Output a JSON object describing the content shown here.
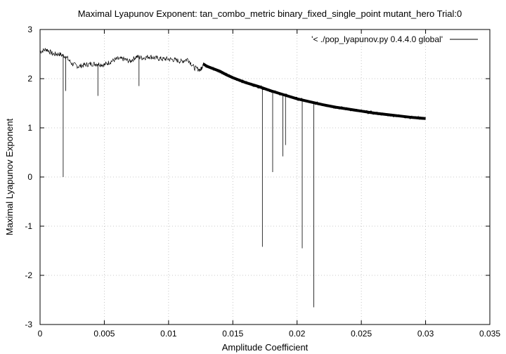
{
  "chart_data": {
    "type": "line",
    "title": "Maximal Lyapunov Exponent: tan_combo_metric binary_fixed_single_point mutant_hero Trial:0",
    "xlabel": "Amplitude Coefficient",
    "ylabel": "Maximal Lyapunov Exponent",
    "xlim": [
      0,
      0.035
    ],
    "ylim": [
      -3,
      3
    ],
    "x_ticks": [
      0,
      0.005,
      0.01,
      0.015,
      0.02,
      0.025,
      0.03,
      0.035
    ],
    "x_tick_labels": [
      "0",
      "0.005",
      "0.01",
      "0.015",
      "0.02",
      "0.025",
      "0.03",
      "0.035"
    ],
    "y_ticks": [
      -3,
      -2,
      -1,
      0,
      1,
      2,
      3
    ],
    "y_tick_labels": [
      "-3",
      "-2",
      "-1",
      "0",
      "1",
      "2",
      "3"
    ],
    "grid": true,
    "legend_position": "top-right",
    "series": [
      {
        "name": "'< ./pop_lyapunov.py 0.4.4.0 global'",
        "color": "#000000",
        "x": [
          0,
          0.0005,
          0.001,
          0.0015,
          0.002,
          0.0025,
          0.003,
          0.0035,
          0.004,
          0.0045,
          0.005,
          0.0055,
          0.006,
          0.0065,
          0.007,
          0.0075,
          0.008,
          0.0085,
          0.009,
          0.0095,
          0.01,
          0.0105,
          0.011,
          0.0115,
          0.012,
          0.0125,
          0.0127,
          0.013,
          0.0135,
          0.014,
          0.0145,
          0.015,
          0.016,
          0.017,
          0.018,
          0.019,
          0.02,
          0.021,
          0.022,
          0.023,
          0.024,
          0.025,
          0.026,
          0.027,
          0.028,
          0.029,
          0.03
        ],
        "y": [
          2.55,
          2.6,
          2.5,
          2.5,
          2.45,
          2.3,
          2.25,
          2.28,
          2.3,
          2.3,
          2.28,
          2.35,
          2.4,
          2.4,
          2.35,
          2.45,
          2.42,
          2.45,
          2.42,
          2.4,
          2.4,
          2.38,
          2.35,
          2.4,
          2.22,
          2.18,
          2.3,
          2.25,
          2.2,
          2.15,
          2.08,
          2.02,
          1.92,
          1.84,
          1.75,
          1.67,
          1.59,
          1.53,
          1.47,
          1.42,
          1.38,
          1.34,
          1.3,
          1.27,
          1.24,
          1.21,
          1.19
        ]
      }
    ],
    "spikes": [
      {
        "x": 0.0018,
        "y": 0.0
      },
      {
        "x": 0.002,
        "y": 1.75
      },
      {
        "x": 0.0045,
        "y": 1.65
      },
      {
        "x": 0.0077,
        "y": 1.85
      },
      {
        "x": 0.0173,
        "y": -1.42
      },
      {
        "x": 0.0181,
        "y": 0.1
      },
      {
        "x": 0.0189,
        "y": 0.42
      },
      {
        "x": 0.0191,
        "y": 0.65
      },
      {
        "x": 0.0204,
        "y": -1.45
      },
      {
        "x": 0.0213,
        "y": -2.65
      }
    ]
  }
}
